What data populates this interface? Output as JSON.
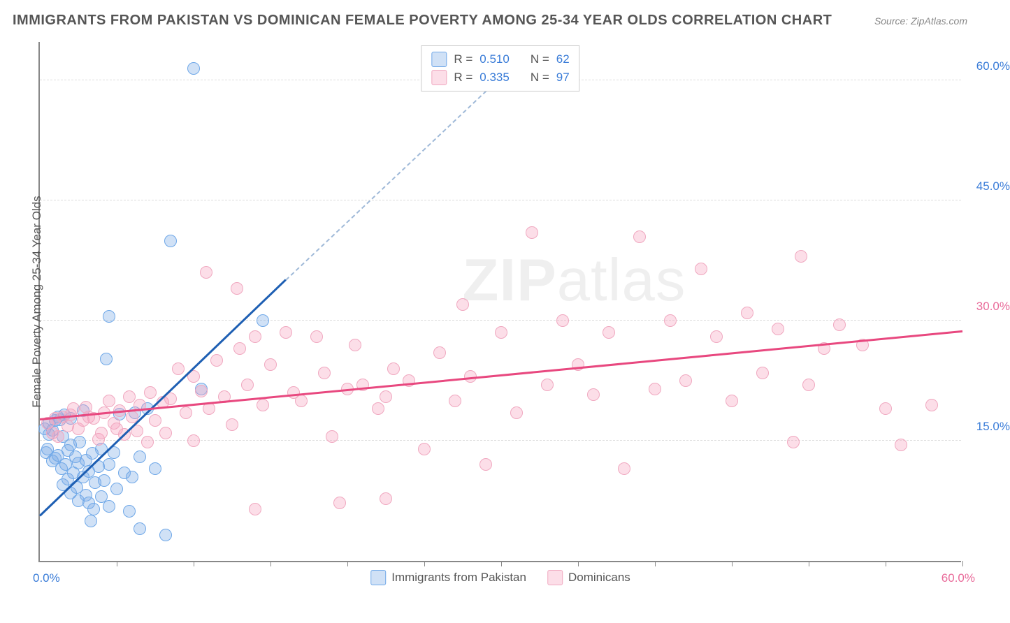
{
  "title": "IMMIGRANTS FROM PAKISTAN VS DOMINICAN FEMALE POVERTY AMONG 25-34 YEAR OLDS CORRELATION CHART",
  "source": "Source: ZipAtlas.com",
  "watermark": "ZIPatlas",
  "chart": {
    "type": "scatter",
    "ylabel": "Female Poverty Among 25-34 Year Olds",
    "xlim": [
      0,
      60
    ],
    "ylim": [
      0,
      65
    ],
    "xmin_label": "0.0%",
    "xmax_label": "60.0%",
    "xmin_color": "#3b7dd8",
    "xmax_color": "#e96b9a",
    "yticks": [
      {
        "v": 15,
        "label": "15.0%",
        "color": "#3b7dd8"
      },
      {
        "v": 30,
        "label": "30.0%",
        "color": "#e96b9a"
      },
      {
        "v": 45,
        "label": "45.0%",
        "color": "#3b7dd8"
      },
      {
        "v": 60,
        "label": "60.0%",
        "color": "#3b7dd8"
      }
    ],
    "xticks": [
      5,
      10,
      15,
      20,
      25,
      30,
      35,
      40,
      45,
      50,
      55,
      60
    ],
    "background_color": "#ffffff",
    "grid_color": "#dddddd",
    "point_radius": 9,
    "series": [
      {
        "name": "Immigrants from Pakistan",
        "fill": "rgba(120,170,230,0.35)",
        "stroke": "#6fa8e8",
        "trend_color": "#1e5fb3",
        "trend_dash_color": "#9fb9d8",
        "R": "0.510",
        "N": "62",
        "trend": {
          "x1": 0,
          "y1": 5.5,
          "x2": 16,
          "y2": 35,
          "x2_dash": 32,
          "y2_dash": 64
        },
        "points": [
          [
            0.3,
            16.5
          ],
          [
            0.4,
            13.5
          ],
          [
            0.5,
            14
          ],
          [
            0.6,
            17.2
          ],
          [
            0.6,
            15.8
          ],
          [
            0.8,
            12.5
          ],
          [
            0.8,
            16.3
          ],
          [
            1.0,
            17.5
          ],
          [
            1.0,
            12.8
          ],
          [
            1.2,
            18
          ],
          [
            1.2,
            13.2
          ],
          [
            1.3,
            17.6
          ],
          [
            1.4,
            11.5
          ],
          [
            1.5,
            15.5
          ],
          [
            1.5,
            9.5
          ],
          [
            1.6,
            18.2
          ],
          [
            1.7,
            12
          ],
          [
            1.8,
            13.8
          ],
          [
            1.8,
            10.2
          ],
          [
            2.0,
            14.5
          ],
          [
            2.0,
            8.5
          ],
          [
            2.0,
            17.8
          ],
          [
            2.2,
            11
          ],
          [
            2.3,
            13
          ],
          [
            2.4,
            9.2
          ],
          [
            2.5,
            12.2
          ],
          [
            2.5,
            7.5
          ],
          [
            2.6,
            14.8
          ],
          [
            2.8,
            10.5
          ],
          [
            2.8,
            18.8
          ],
          [
            3.0,
            8.2
          ],
          [
            3.0,
            12.6
          ],
          [
            3.2,
            11.2
          ],
          [
            3.2,
            7.2
          ],
          [
            3.4,
            13.4
          ],
          [
            3.5,
            6.5
          ],
          [
            3.6,
            9.8
          ],
          [
            3.8,
            11.8
          ],
          [
            4.0,
            14
          ],
          [
            4.0,
            8
          ],
          [
            4.2,
            10
          ],
          [
            4.5,
            12
          ],
          [
            4.5,
            6.8
          ],
          [
            4.8,
            13.5
          ],
          [
            5.0,
            9
          ],
          [
            5.2,
            18.3
          ],
          [
            5.5,
            11
          ],
          [
            5.8,
            6.2
          ],
          [
            6.0,
            10.5
          ],
          [
            6.2,
            18.5
          ],
          [
            3.3,
            5.0
          ],
          [
            6.5,
            13
          ],
          [
            7.0,
            19
          ],
          [
            7.5,
            11.5
          ],
          [
            4.3,
            25.2
          ],
          [
            4.5,
            30.5
          ],
          [
            6.5,
            4.0
          ],
          [
            8.5,
            40
          ],
          [
            10.0,
            61.5
          ],
          [
            10.5,
            21.5
          ],
          [
            14.5,
            30
          ],
          [
            8.2,
            3.2
          ]
        ]
      },
      {
        "name": "Dominicans",
        "fill": "rgba(245,160,190,0.35)",
        "stroke": "#f0a8c0",
        "trend_color": "#e8487f",
        "R": "0.335",
        "N": "97",
        "trend": {
          "x1": 0,
          "y1": 17.5,
          "x2": 60,
          "y2": 28.5
        },
        "points": [
          [
            0.5,
            17.2
          ],
          [
            0.8,
            16
          ],
          [
            1,
            17.8
          ],
          [
            1.2,
            15.5
          ],
          [
            1.5,
            18
          ],
          [
            1.8,
            16.8
          ],
          [
            2,
            18.2
          ],
          [
            2.2,
            19
          ],
          [
            2.5,
            16.5
          ],
          [
            2.8,
            17.5
          ],
          [
            3,
            19.2
          ],
          [
            3.2,
            18
          ],
          [
            3.5,
            17.8
          ],
          [
            3.8,
            15.2
          ],
          [
            4,
            16
          ],
          [
            4.2,
            18.5
          ],
          [
            4.5,
            20
          ],
          [
            4.8,
            17.2
          ],
          [
            5,
            16.5
          ],
          [
            5.2,
            18.8
          ],
          [
            5.5,
            15.8
          ],
          [
            5.8,
            20.5
          ],
          [
            6,
            18
          ],
          [
            6.3,
            16.2
          ],
          [
            6.5,
            19.5
          ],
          [
            7,
            14.8
          ],
          [
            7.2,
            21
          ],
          [
            7.5,
            17.5
          ],
          [
            8,
            19.8
          ],
          [
            8.2,
            16
          ],
          [
            8.5,
            20.2
          ],
          [
            9,
            24
          ],
          [
            9.5,
            18.5
          ],
          [
            10,
            23
          ],
          [
            10,
            15
          ],
          [
            10.5,
            21.2
          ],
          [
            11,
            19
          ],
          [
            11.5,
            25
          ],
          [
            12,
            20.5
          ],
          [
            12.5,
            17
          ],
          [
            13,
            26.5
          ],
          [
            13.5,
            22
          ],
          [
            14,
            28
          ],
          [
            14.5,
            19.5
          ],
          [
            15,
            24.5
          ],
          [
            16,
            28.5
          ],
          [
            16.5,
            21
          ],
          [
            17,
            20
          ],
          [
            18,
            28
          ],
          [
            18.5,
            23.5
          ],
          [
            19,
            15.5
          ],
          [
            20,
            21.5
          ],
          [
            20.5,
            27
          ],
          [
            21,
            22
          ],
          [
            22,
            19
          ],
          [
            22.5,
            20.5
          ],
          [
            23,
            24
          ],
          [
            24,
            22.5
          ],
          [
            25,
            14
          ],
          [
            26,
            26
          ],
          [
            27,
            20
          ],
          [
            27.5,
            32
          ],
          [
            28,
            23
          ],
          [
            29,
            12
          ],
          [
            30,
            28.5
          ],
          [
            31,
            18.5
          ],
          [
            32,
            41
          ],
          [
            33,
            22
          ],
          [
            34,
            30
          ],
          [
            35,
            24.5
          ],
          [
            36,
            20.8
          ],
          [
            37,
            28.5
          ],
          [
            38,
            11.5
          ],
          [
            39,
            40.5
          ],
          [
            40,
            21.5
          ],
          [
            41,
            30
          ],
          [
            42,
            22.5
          ],
          [
            43,
            36.5
          ],
          [
            44,
            28
          ],
          [
            45,
            20
          ],
          [
            46,
            31
          ],
          [
            47,
            23.5
          ],
          [
            48,
            29
          ],
          [
            49,
            14.8
          ],
          [
            49.5,
            38
          ],
          [
            50,
            22
          ],
          [
            51,
            26.5
          ],
          [
            52,
            29.5
          ],
          [
            53.5,
            27
          ],
          [
            55,
            19
          ],
          [
            56,
            14.5
          ],
          [
            58,
            19.5
          ],
          [
            14,
            6.5
          ],
          [
            19.5,
            7.2
          ],
          [
            22.5,
            7.8
          ],
          [
            10.8,
            36
          ],
          [
            12.8,
            34
          ]
        ]
      }
    ],
    "legend_top": {
      "r_label": "R =",
      "n_label": "N =",
      "value_color": "#3b7dd8",
      "text_color": "#555555"
    }
  }
}
